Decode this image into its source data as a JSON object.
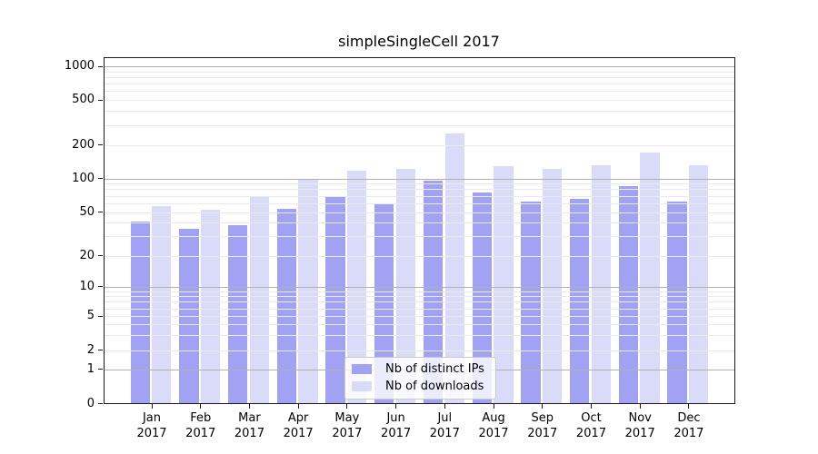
{
  "figure": {
    "title": "simpleSingleCell 2017"
  },
  "chart_data": {
    "type": "bar",
    "title": "simpleSingleCell 2017",
    "categories": [
      "Jan",
      "Feb",
      "Mar",
      "Apr",
      "May",
      "Jun",
      "Jul",
      "Aug",
      "Sep",
      "Oct",
      "Nov",
      "Dec"
    ],
    "category_year": "2017",
    "series": [
      {
        "name": "Nb of distinct IPs",
        "color": "#a2a2f4",
        "values": [
          41,
          35,
          38,
          53,
          69,
          59,
          95,
          75,
          62,
          65,
          85,
          62
        ]
      },
      {
        "name": "Nb of downloads",
        "color": "#dadaf9",
        "values": [
          56,
          52,
          70,
          98,
          117,
          121,
          250,
          128,
          122,
          131,
          170,
          130
        ]
      }
    ],
    "yscale": "symlog",
    "yticks": [
      0,
      1,
      2,
      5,
      10,
      20,
      50,
      100,
      200,
      500,
      1000
    ],
    "ylim": [
      0,
      1190
    ],
    "xlabel": "",
    "ylabel": "",
    "grid": "on",
    "legend_position": "bottom-center",
    "colors": {
      "major_grid": "#b0b0b0",
      "minor_grid": "#eaeaea",
      "axis": "#1a1a1a",
      "text": "#000000"
    }
  }
}
